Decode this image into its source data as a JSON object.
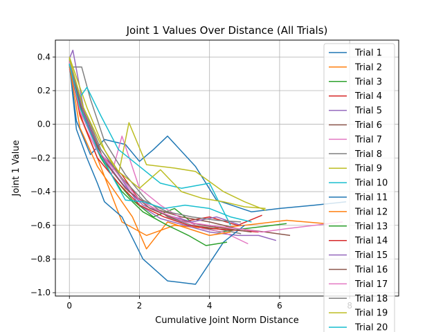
{
  "chart_data": {
    "type": "line",
    "title": "Joint 1 Values Over Distance (All Trials)",
    "xlabel": "Cumulative Joint Norm Distance",
    "ylabel": "Joint 1 Value",
    "xlim": [
      -0.4,
      9.4
    ],
    "ylim": [
      -1.02,
      0.5
    ],
    "xticks": [
      0,
      2,
      4,
      6,
      8
    ],
    "yticks": [
      -1.0,
      -0.8,
      -0.6,
      -0.4,
      -0.2,
      0.0,
      0.2,
      0.4
    ],
    "xtick_labels": [
      "0",
      "2",
      "4",
      "6",
      "8"
    ],
    "ytick_labels": [
      "−1.0",
      "−0.8",
      "−0.6",
      "−0.4",
      "−0.2",
      "0.0",
      "0.2",
      "0.4"
    ],
    "grid": true,
    "legend_position": "right, overlapping plot",
    "series": [
      {
        "name": "Trial 1",
        "color": "#1f77b4",
        "x": [
          0,
          0.2,
          0.6,
          1.0,
          1.6,
          2.0,
          2.4,
          2.8,
          3.6,
          4.2,
          5.2,
          6.0,
          7.0,
          7.9
        ],
        "y": [
          0.36,
          0.02,
          -0.18,
          -0.09,
          -0.12,
          -0.22,
          -0.15,
          -0.07,
          -0.25,
          -0.45,
          -0.52,
          -0.5,
          -0.48,
          -0.46
        ]
      },
      {
        "name": "Trial 2",
        "color": "#ff7f0e",
        "x": [
          0,
          0.3,
          0.8,
          1.5,
          2.2,
          3.0,
          4.0,
          5.0,
          6.2,
          7.3
        ],
        "y": [
          0.38,
          0.05,
          -0.2,
          -0.58,
          -0.66,
          -0.6,
          -0.62,
          -0.6,
          -0.57,
          -0.59
        ]
      },
      {
        "name": "Trial 3",
        "color": "#2ca02c",
        "x": [
          0,
          0.3,
          0.7,
          1.2,
          1.8,
          2.4,
          3.0,
          3.6,
          4.3,
          5.0,
          5.8,
          6.2
        ],
        "y": [
          0.37,
          0.12,
          -0.1,
          -0.3,
          -0.45,
          -0.55,
          -0.5,
          -0.6,
          -0.64,
          -0.62,
          -0.6,
          -0.59
        ]
      },
      {
        "name": "Trial 4",
        "color": "#d62728",
        "x": [
          0,
          0.4,
          0.9,
          1.5,
          2.0,
          2.6,
          3.2,
          4.0,
          4.8,
          5.5
        ],
        "y": [
          0.35,
          0.05,
          -0.18,
          -0.3,
          -0.45,
          -0.52,
          -0.58,
          -0.55,
          -0.6,
          -0.54
        ]
      },
      {
        "name": "Trial 5",
        "color": "#9467bd",
        "x": [
          0,
          0.1,
          0.4,
          0.9,
          1.4,
          2.0,
          2.6,
          3.3,
          4.0,
          4.8,
          5.4,
          5.9
        ],
        "y": [
          0.39,
          0.44,
          0.1,
          -0.15,
          -0.3,
          -0.48,
          -0.56,
          -0.6,
          -0.64,
          -0.66,
          -0.66,
          -0.69
        ]
      },
      {
        "name": "Trial 6",
        "color": "#8c564b",
        "x": [
          0,
          0.4,
          1.0,
          1.7,
          2.4,
          3.2,
          4.0,
          4.8,
          5.6,
          6.3
        ],
        "y": [
          0.34,
          0.08,
          -0.22,
          -0.4,
          -0.5,
          -0.55,
          -0.58,
          -0.62,
          -0.64,
          -0.66
        ]
      },
      {
        "name": "Trial 7",
        "color": "#e377c2",
        "x": [
          0,
          0.4,
          0.9,
          1.2,
          1.5,
          2.0,
          2.6,
          3.2,
          3.8,
          4.4,
          5.1
        ],
        "y": [
          0.33,
          0.0,
          -0.2,
          -0.3,
          -0.07,
          -0.38,
          -0.48,
          -0.56,
          -0.62,
          -0.64,
          -0.71
        ]
      },
      {
        "name": "Trial 8",
        "color": "#7f7f7f",
        "x": [
          0,
          0.2,
          0.35,
          0.6,
          1.0,
          1.6,
          2.2,
          2.8,
          3.5,
          4.2,
          4.9
        ],
        "y": [
          0.34,
          0.34,
          0.34,
          0.15,
          -0.1,
          -0.3,
          -0.45,
          -0.55,
          -0.6,
          -0.62,
          -0.65
        ]
      },
      {
        "name": "Trial 9",
        "color": "#bcbd22",
        "x": [
          0,
          0.5,
          1.0,
          1.4,
          1.7,
          2.2,
          3.0,
          3.6,
          4.4,
          5.0,
          5.6
        ],
        "y": [
          0.4,
          0.1,
          -0.15,
          -0.3,
          0.01,
          -0.24,
          -0.26,
          -0.28,
          -0.4,
          -0.46,
          -0.51
        ]
      },
      {
        "name": "Trial 10",
        "color": "#17becf",
        "x": [
          0,
          0.3,
          0.5,
          0.9,
          1.4,
          2.0,
          2.6,
          3.2,
          4.0,
          4.6
        ],
        "y": [
          0.35,
          0.16,
          0.22,
          0.05,
          -0.15,
          -0.25,
          -0.35,
          -0.38,
          -0.35,
          -0.6
        ]
      },
      {
        "name": "Trial 11",
        "color": "#1f77b4",
        "x": [
          0,
          0.2,
          0.5,
          0.8,
          1.0,
          1.5,
          2.1,
          2.8,
          3.6,
          4.4,
          5.0
        ],
        "y": [
          0.36,
          -0.03,
          -0.2,
          -0.35,
          -0.46,
          -0.55,
          -0.8,
          -0.93,
          -0.95,
          -0.7,
          -0.6
        ]
      },
      {
        "name": "Trial 12",
        "color": "#ff7f0e",
        "x": [
          0,
          0.3,
          0.8,
          1.3,
          1.8,
          2.2,
          2.8,
          3.4,
          4.0,
          4.6
        ],
        "y": [
          0.35,
          -0.02,
          -0.25,
          -0.4,
          -0.55,
          -0.74,
          -0.58,
          -0.62,
          -0.66,
          -0.64
        ]
      },
      {
        "name": "Trial 13",
        "color": "#2ca02c",
        "x": [
          0,
          0.4,
          0.9,
          1.5,
          2.1,
          2.8,
          3.4,
          3.9,
          4.5
        ],
        "y": [
          0.39,
          0.05,
          -0.2,
          -0.4,
          -0.52,
          -0.6,
          -0.66,
          -0.72,
          -0.7
        ]
      },
      {
        "name": "Trial 14",
        "color": "#d62728",
        "x": [
          0,
          0.3,
          0.8,
          1.4,
          2.0,
          2.7,
          3.4,
          4.1,
          4.8,
          5.4
        ],
        "y": [
          0.37,
          0.06,
          -0.2,
          -0.35,
          -0.48,
          -0.55,
          -0.6,
          -0.62,
          -0.63,
          -0.64
        ]
      },
      {
        "name": "Trial 15",
        "color": "#9467bd",
        "x": [
          0,
          0.4,
          0.9,
          1.5,
          2.1,
          2.8,
          3.5,
          4.2,
          4.9
        ],
        "y": [
          0.38,
          0.07,
          -0.18,
          -0.35,
          -0.48,
          -0.54,
          -0.58,
          -0.55,
          -0.6
        ]
      },
      {
        "name": "Trial 16",
        "color": "#8c564b",
        "x": [
          0,
          0.4,
          1.0,
          1.6,
          2.3,
          3.0,
          3.8,
          4.5,
          5.2
        ],
        "y": [
          0.36,
          0.04,
          -0.22,
          -0.38,
          -0.5,
          -0.56,
          -0.6,
          -0.62,
          -0.64
        ]
      },
      {
        "name": "Trial 17",
        "color": "#e377c2",
        "x": [
          0,
          0.3,
          0.8,
          1.4,
          2.0,
          2.6,
          3.3,
          4.0,
          4.8,
          5.5,
          6.2,
          7.0,
          7.8
        ],
        "y": [
          0.37,
          0.08,
          -0.15,
          -0.3,
          -0.45,
          -0.52,
          -0.58,
          -0.6,
          -0.62,
          -0.64,
          -0.62,
          -0.6,
          -0.58
        ]
      },
      {
        "name": "Trial 18",
        "color": "#7f7f7f",
        "x": [
          0,
          0.4,
          0.9,
          1.5,
          2.1,
          2.8,
          3.5,
          4.2,
          4.9
        ],
        "y": [
          0.35,
          0.1,
          -0.15,
          -0.32,
          -0.45,
          -0.52,
          -0.55,
          -0.57,
          -0.58
        ]
      },
      {
        "name": "Trial 19",
        "color": "#bcbd22",
        "x": [
          0,
          0.4,
          0.9,
          1.4,
          2.0,
          2.6,
          3.2,
          3.8,
          4.4,
          5.0,
          5.6
        ],
        "y": [
          0.39,
          0.1,
          -0.12,
          -0.28,
          -0.38,
          -0.27,
          -0.4,
          -0.44,
          -0.46,
          -0.49,
          -0.5
        ]
      },
      {
        "name": "Trial 20",
        "color": "#17becf",
        "x": [
          0,
          0.3,
          0.8,
          1.2,
          1.6,
          2.1,
          2.7,
          3.3,
          4.0,
          4.6,
          5.2
        ],
        "y": [
          0.36,
          0.1,
          -0.15,
          -0.3,
          -0.45,
          -0.46,
          -0.5,
          -0.48,
          -0.5,
          -0.55,
          -0.58
        ]
      }
    ]
  }
}
